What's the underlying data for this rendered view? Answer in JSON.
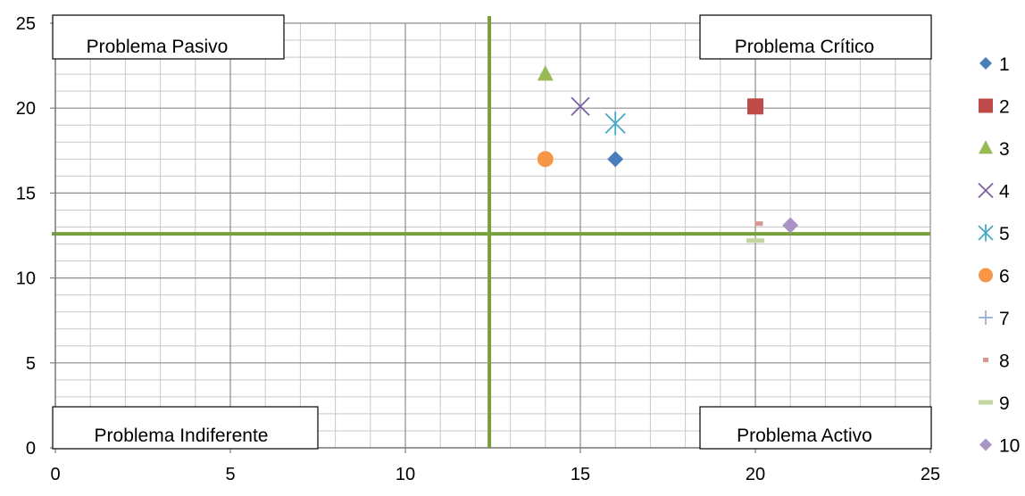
{
  "chart_data": {
    "type": "scatter",
    "title": "",
    "xlabel": "",
    "ylabel": "",
    "xlim": [
      0,
      25
    ],
    "ylim": [
      0,
      25
    ],
    "grid": true,
    "minor_grid": true,
    "legend_position": "right",
    "x_ticks": [
      "0",
      "5",
      "10",
      "15",
      "20",
      "25"
    ],
    "y_ticks": [
      "0",
      "5",
      "10",
      "15",
      "20",
      "25"
    ],
    "x_tick_values": [
      0,
      5,
      10,
      15,
      20,
      25
    ],
    "y_tick_values": [
      0,
      5,
      10,
      15,
      20,
      25
    ],
    "reference_lines": {
      "vertical_x": 12.4,
      "horizontal_y": 12.6,
      "color": "#77a03a"
    },
    "quadrant_labels": {
      "top_left": "Problema Pasivo",
      "top_right": "Problema Crítico",
      "bottom_left": "Problema Indiferente",
      "bottom_right": "Problema Activo"
    },
    "series": [
      {
        "name": "1",
        "marker": "diamond",
        "color": "#4a7ebb",
        "points": [
          [
            16,
            17
          ]
        ]
      },
      {
        "name": "2",
        "marker": "square",
        "color": "#be4b48",
        "points": [
          [
            20,
            20.1
          ]
        ]
      },
      {
        "name": "3",
        "marker": "triangle",
        "color": "#98b954",
        "points": [
          [
            14,
            22
          ]
        ]
      },
      {
        "name": "4",
        "marker": "x",
        "color": "#7d60a0",
        "points": [
          [
            15,
            20.1
          ]
        ]
      },
      {
        "name": "5",
        "marker": "star",
        "color": "#46aac5",
        "points": [
          [
            16,
            19.1
          ]
        ]
      },
      {
        "name": "6",
        "marker": "circle",
        "color": "#f79646",
        "points": [
          [
            14,
            17
          ]
        ]
      },
      {
        "name": "7",
        "marker": "plus",
        "color": "#95b3d7",
        "points": []
      },
      {
        "name": "8",
        "marker": "dash",
        "color": "#da9694",
        "points": [
          [
            20.1,
            13.2
          ]
        ]
      },
      {
        "name": "9",
        "marker": "longdash",
        "color": "#c3d69b",
        "points": [
          [
            20,
            12.2
          ]
        ]
      },
      {
        "name": "10",
        "marker": "diamond",
        "color": "#a994c5",
        "points": [
          [
            21,
            13.1
          ]
        ]
      }
    ]
  }
}
